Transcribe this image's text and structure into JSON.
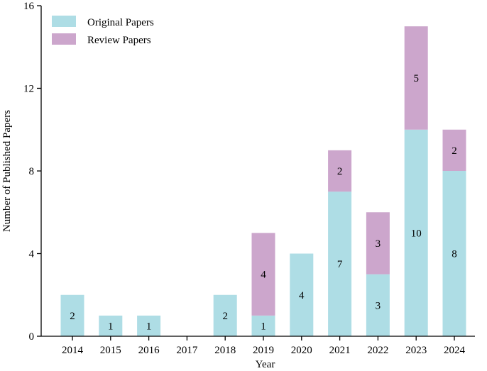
{
  "chart_data": {
    "type": "bar",
    "stacked": true,
    "categories": [
      "2014",
      "2015",
      "2016",
      "2017",
      "2018",
      "2019",
      "2020",
      "2021",
      "2022",
      "2023",
      "2024"
    ],
    "series": [
      {
        "name": "Original Papers",
        "color": "#aedde5",
        "values": [
          2,
          1,
          1,
          0,
          2,
          1,
          4,
          7,
          3,
          10,
          8
        ],
        "labels": [
          "2",
          "1",
          "1",
          "",
          "2",
          "1",
          "4",
          "7",
          "3",
          "10",
          "8"
        ]
      },
      {
        "name": "Review Papers",
        "color": "#cca6cc",
        "values": [
          0,
          0,
          0,
          0,
          0,
          4,
          0,
          2,
          3,
          5,
          2
        ],
        "labels": [
          "",
          "",
          "",
          "",
          "",
          "4",
          "",
          "2",
          "3",
          "5",
          "2"
        ]
      }
    ],
    "title": "",
    "xlabel": "Year",
    "ylabel": "Number of Published Papers",
    "ylim": [
      0,
      16
    ],
    "yticks": [
      "0",
      "4",
      "8",
      "12",
      "16"
    ],
    "grid": false,
    "legend_position": "top-left"
  }
}
